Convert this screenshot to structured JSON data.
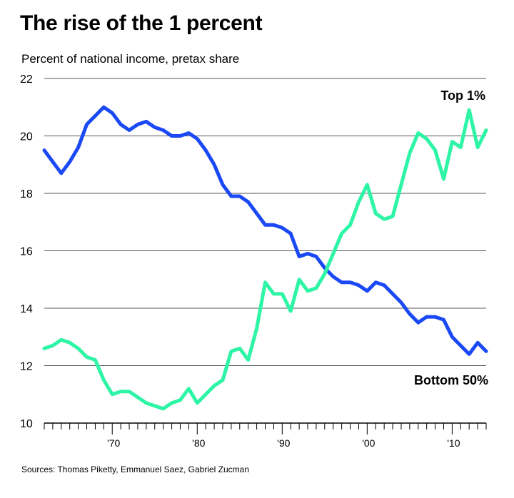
{
  "title": "The rise of the 1 percent",
  "subtitle": "Percent of national income, pretax share",
  "source": "Sources: Thomas Piketty, Emmanuel Saez, Gabriel Zucman",
  "chart_data": {
    "type": "line",
    "title": "The rise of the 1 percent",
    "ylabel": "Percent of national income, pretax share",
    "xlim": [
      1962,
      2014
    ],
    "ylim": [
      10,
      22
    ],
    "yticks": [
      10,
      12,
      14,
      16,
      18,
      20,
      22
    ],
    "yticklabels": [
      "10",
      "12",
      "14",
      "16",
      "18",
      "20",
      "22"
    ],
    "xticks": [
      1970,
      1980,
      1990,
      2000,
      2010
    ],
    "xticklabels": [
      "'70",
      "'80",
      "'90",
      "'00",
      "'10"
    ],
    "grid": "horizontal",
    "legend": "direct labels",
    "x": [
      1962,
      1963,
      1964,
      1965,
      1966,
      1967,
      1968,
      1969,
      1970,
      1971,
      1972,
      1973,
      1974,
      1975,
      1976,
      1977,
      1978,
      1979,
      1980,
      1981,
      1982,
      1983,
      1984,
      1985,
      1986,
      1987,
      1988,
      1989,
      1990,
      1991,
      1992,
      1993,
      1994,
      1995,
      1996,
      1997,
      1998,
      1999,
      2000,
      2001,
      2002,
      2003,
      2004,
      2005,
      2006,
      2007,
      2008,
      2009,
      2010,
      2011,
      2012,
      2013,
      2014
    ],
    "series": [
      {
        "name": "Bottom 50%",
        "color": "#1a49f5",
        "values": [
          19.5,
          19.1,
          18.7,
          19.1,
          19.6,
          20.4,
          20.7,
          21.0,
          20.8,
          20.4,
          20.2,
          20.4,
          20.5,
          20.3,
          20.2,
          20.0,
          20.0,
          20.1,
          19.9,
          19.5,
          19.0,
          18.3,
          17.9,
          17.9,
          17.7,
          17.3,
          16.9,
          16.9,
          16.8,
          16.6,
          15.8,
          15.9,
          15.8,
          15.4,
          15.1,
          14.9,
          14.9,
          14.8,
          14.6,
          14.9,
          14.8,
          14.5,
          14.2,
          13.8,
          13.5,
          13.7,
          13.7,
          13.6,
          13.0,
          12.7,
          12.4,
          12.8,
          12.5
        ]
      },
      {
        "name": "Top 1%",
        "color": "#2ef5a6",
        "values": [
          12.6,
          12.7,
          12.9,
          12.8,
          12.6,
          12.3,
          12.2,
          11.5,
          11.0,
          11.1,
          11.1,
          10.9,
          10.7,
          10.6,
          10.5,
          10.7,
          10.8,
          11.2,
          10.7,
          11.0,
          11.3,
          11.5,
          12.5,
          12.6,
          12.2,
          13.3,
          14.9,
          14.5,
          14.5,
          13.9,
          15.0,
          14.6,
          14.7,
          15.2,
          15.9,
          16.6,
          16.9,
          17.7,
          18.3,
          17.3,
          17.1,
          17.2,
          18.3,
          19.4,
          20.1,
          19.9,
          19.5,
          18.5,
          19.8,
          19.6,
          20.9,
          19.6,
          20.2
        ]
      }
    ]
  }
}
